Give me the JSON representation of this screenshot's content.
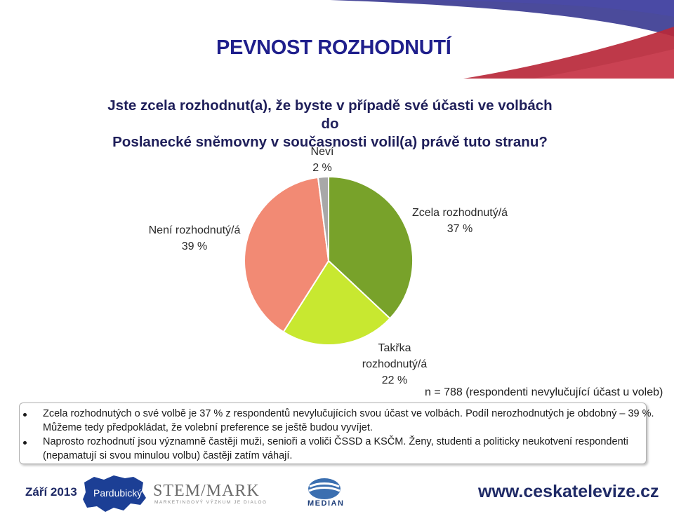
{
  "slide": {
    "title": "PEVNOST ROZHODNUTÍ",
    "question_line1": "Jste zcela rozhodnut(a), že byste v případě své účasti ve volbách do",
    "question_line2": "Poslanecké sněmovny v současnosti volil(a) právě tuto stranu?"
  },
  "chart_data": {
    "type": "pie",
    "slices": [
      {
        "label": "Zcela rozhodnutý/á",
        "value": 37,
        "value_label": "37 %",
        "color": "#78a22a"
      },
      {
        "label_lines": [
          "Takřka",
          "rozhodnutý/á"
        ],
        "label": "Takřka rozhodnutý/á",
        "value": 22,
        "value_label": "22 %",
        "color": "#c8e830"
      },
      {
        "label": "Není rozhodnutý/á",
        "value": 39,
        "value_label": "39 %",
        "color": "#f28a74"
      },
      {
        "label": "Neví",
        "value": 2,
        "value_label": "2 %",
        "color": "#a8a8a8"
      }
    ]
  },
  "n_note": "n = 788 (respondenti nevylučující účast u voleb)",
  "notes": {
    "b1_line1": "Zcela rozhodnutých o své volbě je 37 % z respondentů nevylučujících svou účast ve volbách. Podíl nerozhodnutých je obdobný – 39 %.",
    "b1_line2": "Můžeme tedy předpokládat, že volební preference se ještě budou vyvíjet.",
    "b2_line1": "Naprosto rozhodnutí jsou významně častěji muži, senioři a voliči ČSSD a KSČM. Ženy, studenti a politicky neukotvení respondenti",
    "b2_line2": "(nepamatují si svou minulou volbu) častěji zatím váhají."
  },
  "footer": {
    "date": "Září 2013",
    "region": "Pardubický",
    "stem_logo": "STEM/MARK",
    "stem_sub": "MARKETINGOVÝ VÝZKUM JE DIALOG",
    "median": "MEDIAN",
    "website": "www.ceskatelevize.cz"
  },
  "colors": {
    "title": "#1f1f8c",
    "top_band_blue": "#2c2c8a",
    "top_band_red": "#b8283a",
    "footer_blue": "#1f2a66",
    "region_fill": "#1c3f95",
    "median_logo": "#3b6fb0"
  },
  "icons": [
    "region-map-icon",
    "stem-logo-icon",
    "median-logo-icon"
  ]
}
